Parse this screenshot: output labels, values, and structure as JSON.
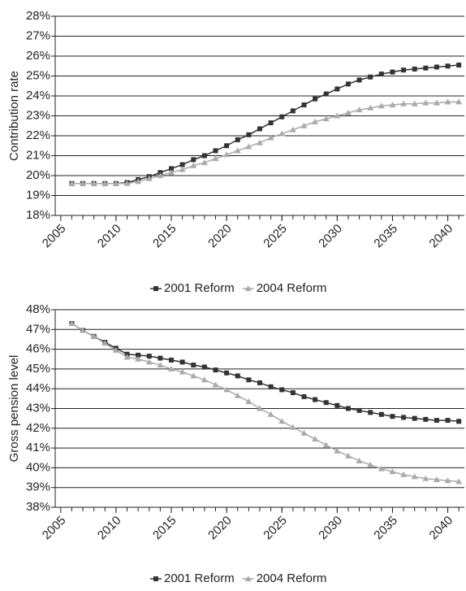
{
  "chart_data": [
    {
      "type": "line",
      "y_label": "Contribution rate",
      "x": [
        2006,
        2007,
        2008,
        2009,
        2010,
        2011,
        2012,
        2013,
        2014,
        2015,
        2016,
        2017,
        2018,
        2019,
        2020,
        2021,
        2022,
        2023,
        2024,
        2025,
        2026,
        2027,
        2028,
        2029,
        2030,
        2031,
        2032,
        2033,
        2034,
        2035,
        2036,
        2037,
        2038,
        2039,
        2040,
        2041
      ],
      "series": [
        {
          "name": "2001 Reform",
          "color": "#333333",
          "marker": "square",
          "values": [
            19.6,
            19.6,
            19.6,
            19.6,
            19.6,
            19.65,
            19.8,
            19.95,
            20.15,
            20.35,
            20.55,
            20.8,
            21.0,
            21.25,
            21.5,
            21.8,
            22.05,
            22.35,
            22.65,
            22.95,
            23.25,
            23.55,
            23.85,
            24.1,
            24.35,
            24.6,
            24.8,
            24.95,
            25.1,
            25.2,
            25.3,
            25.35,
            25.4,
            25.45,
            25.5,
            25.55
          ]
        },
        {
          "name": "2004 Reform",
          "color": "#aaaaaa",
          "marker": "triangle",
          "values": [
            19.6,
            19.6,
            19.6,
            19.6,
            19.6,
            19.6,
            19.7,
            19.85,
            20.0,
            20.15,
            20.3,
            20.5,
            20.65,
            20.85,
            21.05,
            21.25,
            21.45,
            21.65,
            21.9,
            22.1,
            22.3,
            22.5,
            22.7,
            22.85,
            23.0,
            23.15,
            23.3,
            23.4,
            23.5,
            23.55,
            23.6,
            23.6,
            23.65,
            23.65,
            23.7,
            23.7
          ]
        }
      ],
      "xlim": [
        2004.5,
        2041.5
      ],
      "xticks": [
        2005,
        2010,
        2015,
        2020,
        2025,
        2030,
        2035,
        2040
      ],
      "ylim": [
        18,
        28
      ],
      "yticks": [
        {
          "value": 18,
          "label": "18%"
        },
        {
          "value": 19,
          "label": "19%"
        },
        {
          "value": 20,
          "label": "20%"
        },
        {
          "value": 21,
          "label": "21%"
        },
        {
          "value": 22,
          "label": "22%"
        },
        {
          "value": 23,
          "label": "23%"
        },
        {
          "value": 24,
          "label": "24%"
        },
        {
          "value": 25,
          "label": "25%"
        },
        {
          "value": 26,
          "label": "26%"
        },
        {
          "value": 27,
          "label": "27%"
        },
        {
          "value": 28,
          "label": "28%"
        }
      ],
      "grid": true,
      "legend": "bottom"
    },
    {
      "type": "line",
      "y_label": "Gross pension level",
      "x": [
        2006,
        2007,
        2008,
        2009,
        2010,
        2011,
        2012,
        2013,
        2014,
        2015,
        2016,
        2017,
        2018,
        2019,
        2020,
        2021,
        2022,
        2023,
        2024,
        2025,
        2026,
        2027,
        2028,
        2029,
        2030,
        2031,
        2032,
        2033,
        2034,
        2035,
        2036,
        2037,
        2038,
        2039,
        2040,
        2041
      ],
      "series": [
        {
          "name": "2001 Reform",
          "color": "#333333",
          "marker": "square",
          "values": [
            47.3,
            46.95,
            46.65,
            46.35,
            46.05,
            45.75,
            45.7,
            45.65,
            45.55,
            45.45,
            45.35,
            45.2,
            45.1,
            44.95,
            44.8,
            44.65,
            44.45,
            44.3,
            44.1,
            43.95,
            43.8,
            43.6,
            43.45,
            43.3,
            43.15,
            43.0,
            42.9,
            42.8,
            42.7,
            42.6,
            42.55,
            42.5,
            42.45,
            42.4,
            42.4,
            42.35
          ]
        },
        {
          "name": "2004 Reform",
          "color": "#aaaaaa",
          "marker": "triangle",
          "values": [
            47.3,
            46.95,
            46.65,
            46.3,
            45.95,
            45.6,
            45.5,
            45.35,
            45.2,
            45.0,
            44.85,
            44.65,
            44.45,
            44.2,
            43.95,
            43.65,
            43.35,
            43.0,
            42.7,
            42.35,
            42.05,
            41.75,
            41.45,
            41.15,
            40.85,
            40.6,
            40.35,
            40.15,
            39.95,
            39.8,
            39.65,
            39.55,
            39.45,
            39.4,
            39.35,
            39.3
          ]
        }
      ],
      "xlim": [
        2004.5,
        2041.5
      ],
      "xticks": [
        2005,
        2010,
        2015,
        2020,
        2025,
        2030,
        2035,
        2040
      ],
      "ylim": [
        38,
        48
      ],
      "yticks": [
        {
          "value": 38,
          "label": "38%"
        },
        {
          "value": 39,
          "label": "39%"
        },
        {
          "value": 40,
          "label": "40%"
        },
        {
          "value": 41,
          "label": "41%"
        },
        {
          "value": 42,
          "label": "42%"
        },
        {
          "value": 43,
          "label": "43%"
        },
        {
          "value": 44,
          "label": "44%"
        },
        {
          "value": 45,
          "label": "45%"
        },
        {
          "value": 46,
          "label": "46%"
        },
        {
          "value": 47,
          "label": "47%"
        },
        {
          "value": 48,
          "label": "48%"
        }
      ],
      "grid": true,
      "legend": "bottom"
    }
  ]
}
